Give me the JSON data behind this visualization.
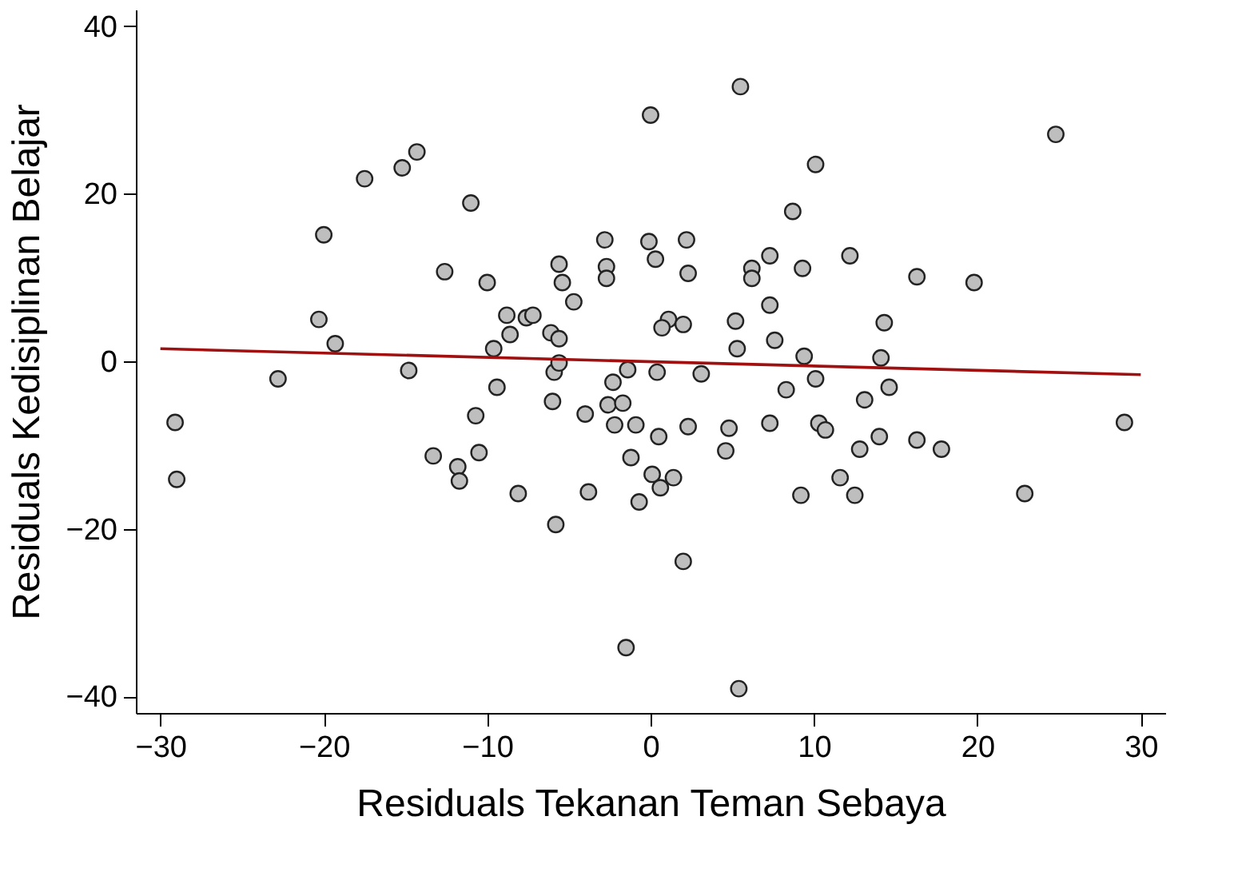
{
  "chart_data": {
    "type": "scatter",
    "xlabel": "Residuals Tekanan Teman Sebaya",
    "ylabel": "Residuals Kedisiplinan Belajar",
    "xlim": [
      -31.5,
      31.5
    ],
    "ylim": [
      -42,
      42
    ],
    "xticks": [
      -30,
      -20,
      -10,
      0,
      10,
      20,
      30
    ],
    "yticks": [
      -40,
      -20,
      0,
      20,
      40
    ],
    "grid": false,
    "series": [
      {
        "marker": "circle",
        "color": "#bebebe",
        "x": [
          -29.1,
          -29.0,
          -22.8,
          -20.3,
          -20.0,
          -19.3,
          -17.5,
          -15.2,
          -14.3,
          -14.8,
          -12.6,
          -11.0,
          -13.3,
          -11.8,
          -11.7,
          -10.7,
          -10.5,
          -10.0,
          -9.6,
          -9.4,
          -8.8,
          -8.6,
          -8.1,
          -7.6,
          -7.2,
          -6.1,
          -5.6,
          -5.9,
          -6.0,
          -5.6,
          -5.4,
          -5.6,
          -4.7,
          -5.8,
          -4.0,
          -3.8,
          -2.8,
          -2.7,
          -2.7,
          -2.3,
          -2.6,
          -1.7,
          -2.2,
          -0.9,
          -1.4,
          -1.2,
          -0.7,
          -1.5,
          0.0,
          5.5,
          10.1,
          24.8,
          8.7,
          -0.1,
          2.2,
          0.3,
          2.3,
          6.2,
          6.2,
          7.3,
          9.3,
          12.2,
          16.3,
          19.8,
          7.3,
          1.1,
          0.7,
          2.0,
          5.2,
          14.3,
          5.3,
          7.6,
          9.4,
          14.1,
          0.4,
          3.1,
          8.3,
          10.1,
          13.1,
          14.6,
          29.0,
          0.5,
          2.3,
          4.8,
          4.6,
          7.3,
          10.3,
          10.7,
          12.8,
          14.0,
          16.3,
          17.8,
          0.1,
          1.4,
          0.6,
          9.2,
          11.6,
          12.5,
          22.9,
          2.0,
          5.4
        ],
        "values": [
          -7.3,
          -14.1,
          -2.1,
          5.0,
          15.1,
          2.1,
          21.8,
          23.1,
          25.0,
          -1.1,
          10.7,
          18.9,
          -11.3,
          -12.6,
          -14.3,
          -6.5,
          -10.9,
          9.4,
          1.5,
          -3.1,
          5.5,
          3.2,
          -15.8,
          5.2,
          5.5,
          3.4,
          2.7,
          -1.3,
          -4.8,
          11.6,
          9.4,
          -0.2,
          7.1,
          -19.5,
          -6.3,
          -15.6,
          14.5,
          11.3,
          9.9,
          -2.5,
          -5.2,
          -5.0,
          -7.6,
          -7.6,
          -1.0,
          -11.5,
          -16.8,
          -34.2,
          29.4,
          32.8,
          23.5,
          27.1,
          17.9,
          14.3,
          14.5,
          12.2,
          10.5,
          11.1,
          9.9,
          12.6,
          11.1,
          12.6,
          10.1,
          9.4,
          6.7,
          5.0,
          4.0,
          4.4,
          4.8,
          4.6,
          1.5,
          2.5,
          0.6,
          0.4,
          -1.3,
          -1.5,
          -3.4,
          -2.1,
          -4.6,
          -3.1,
          -7.3,
          -9.0,
          -7.8,
          -8.0,
          -10.7,
          -7.4,
          -7.4,
          -8.2,
          -10.5,
          -9.0,
          -9.4,
          -10.5,
          -13.5,
          -13.9,
          -15.1,
          -16.0,
          -13.9,
          -16.0,
          -15.8,
          -23.9,
          -39.1
        ]
      },
      {
        "type": "line",
        "color": "#a01010",
        "x": [
          -30,
          30
        ],
        "values": [
          1.5,
          -1.6
        ]
      }
    ]
  }
}
